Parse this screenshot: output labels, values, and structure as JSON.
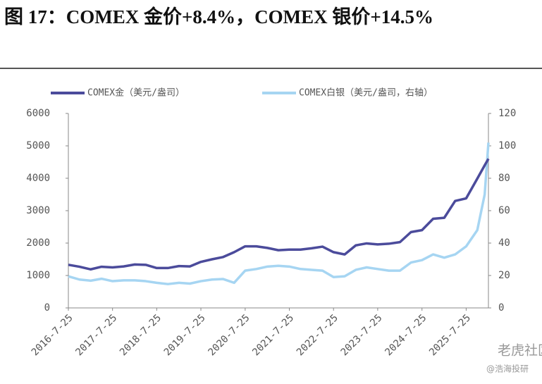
{
  "chart_data": {
    "type": "line",
    "title": "图 17：COMEX 金价+8.4%，COMEX 银价+14.5%",
    "x": [
      "2016-7-25",
      "2016-10-25",
      "2017-1-25",
      "2017-4-25",
      "2017-7-25",
      "2017-10-25",
      "2018-1-25",
      "2018-4-25",
      "2018-7-25",
      "2018-10-25",
      "2019-1-25",
      "2019-4-25",
      "2019-7-25",
      "2019-10-25",
      "2020-1-25",
      "2020-4-25",
      "2020-7-25",
      "2020-10-25",
      "2021-1-25",
      "2021-4-25",
      "2021-7-25",
      "2021-10-25",
      "2022-1-25",
      "2022-4-25",
      "2022-7-25",
      "2022-10-25",
      "2023-1-25",
      "2023-4-25",
      "2023-7-25",
      "2023-10-25",
      "2024-1-25",
      "2024-4-25",
      "2024-7-25",
      "2024-10-25",
      "2025-1-25",
      "2025-4-25",
      "2025-7-25",
      "2025-10-25",
      "2025-12-25",
      "2026-1-25"
    ],
    "series": [
      {
        "name": "COMEX金（美元/盎司）",
        "color": "#4b4b9b",
        "axis": "y",
        "values": [
          1330,
          1270,
          1190,
          1270,
          1250,
          1280,
          1340,
          1330,
          1230,
          1230,
          1290,
          1280,
          1420,
          1500,
          1570,
          1720,
          1900,
          1900,
          1850,
          1780,
          1800,
          1800,
          1840,
          1890,
          1720,
          1650,
          1930,
          1990,
          1960,
          1980,
          2030,
          2340,
          2400,
          2750,
          2780,
          3300,
          3380,
          3990,
          4400,
          4600
        ]
      },
      {
        "name": "COMEX白银（美元/盎司，右轴）",
        "color": "#a6d5f2",
        "axis": "y2",
        "values": [
          19.5,
          17.5,
          16.8,
          18,
          16.5,
          17,
          17,
          16.5,
          15.5,
          14.7,
          15.5,
          15,
          16.5,
          17.5,
          17.8,
          15.5,
          23,
          24,
          25.5,
          26,
          25.5,
          24,
          23.5,
          23,
          19,
          19.5,
          23.5,
          25,
          24,
          23,
          23,
          28,
          29.5,
          33,
          31,
          33,
          38,
          48,
          70,
          102
        ]
      }
    ],
    "xlim": [
      "2016-7-25",
      "2026-1-25"
    ],
    "xticks": [
      "2016-7-25",
      "2017-7-25",
      "2018-7-25",
      "2019-7-25",
      "2020-7-25",
      "2021-7-25",
      "2022-7-25",
      "2023-7-25",
      "2024-7-25",
      "2025-7-25"
    ],
    "ylim": [
      0,
      6000
    ],
    "yticks": [
      0,
      1000,
      2000,
      3000,
      4000,
      5000,
      6000
    ],
    "y2lim": [
      0,
      120
    ],
    "y2ticks": [
      0,
      20,
      40,
      60,
      80,
      100,
      120
    ],
    "legend": "top"
  },
  "watermark": {
    "brand": "老虎社区",
    "author": "@浩海投研"
  }
}
